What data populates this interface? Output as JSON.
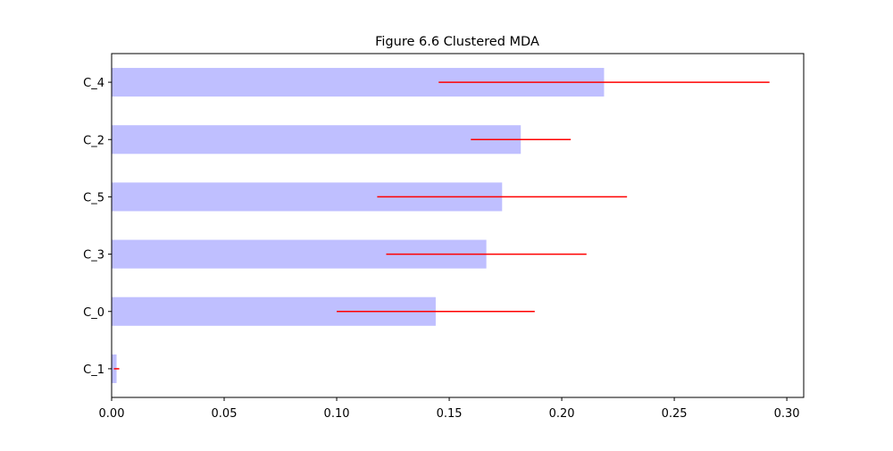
{
  "chart_data": {
    "type": "bar",
    "orientation": "horizontal",
    "title": "Figure 6.6 Clustered MDA",
    "xlabel": "",
    "ylabel": "",
    "categories": [
      "C_1",
      "C_0",
      "C_3",
      "C_5",
      "C_2",
      "C_4"
    ],
    "values": [
      0.0022,
      0.144,
      0.1665,
      0.1735,
      0.1818,
      0.2188
    ],
    "error": [
      0.0012,
      0.044,
      0.0445,
      0.0555,
      0.0222,
      0.0735
    ],
    "xlim": [
      0.0,
      0.3075
    ],
    "xticks": [
      0.0,
      0.05,
      0.1,
      0.15,
      0.2,
      0.25,
      0.3
    ],
    "xtick_labels": [
      "0.00",
      "0.05",
      "0.10",
      "0.15",
      "0.20",
      "0.25",
      "0.30"
    ],
    "grid": false,
    "legend": "none",
    "colors": {
      "bar": "#bfbfff",
      "error": "#ff0000"
    }
  }
}
